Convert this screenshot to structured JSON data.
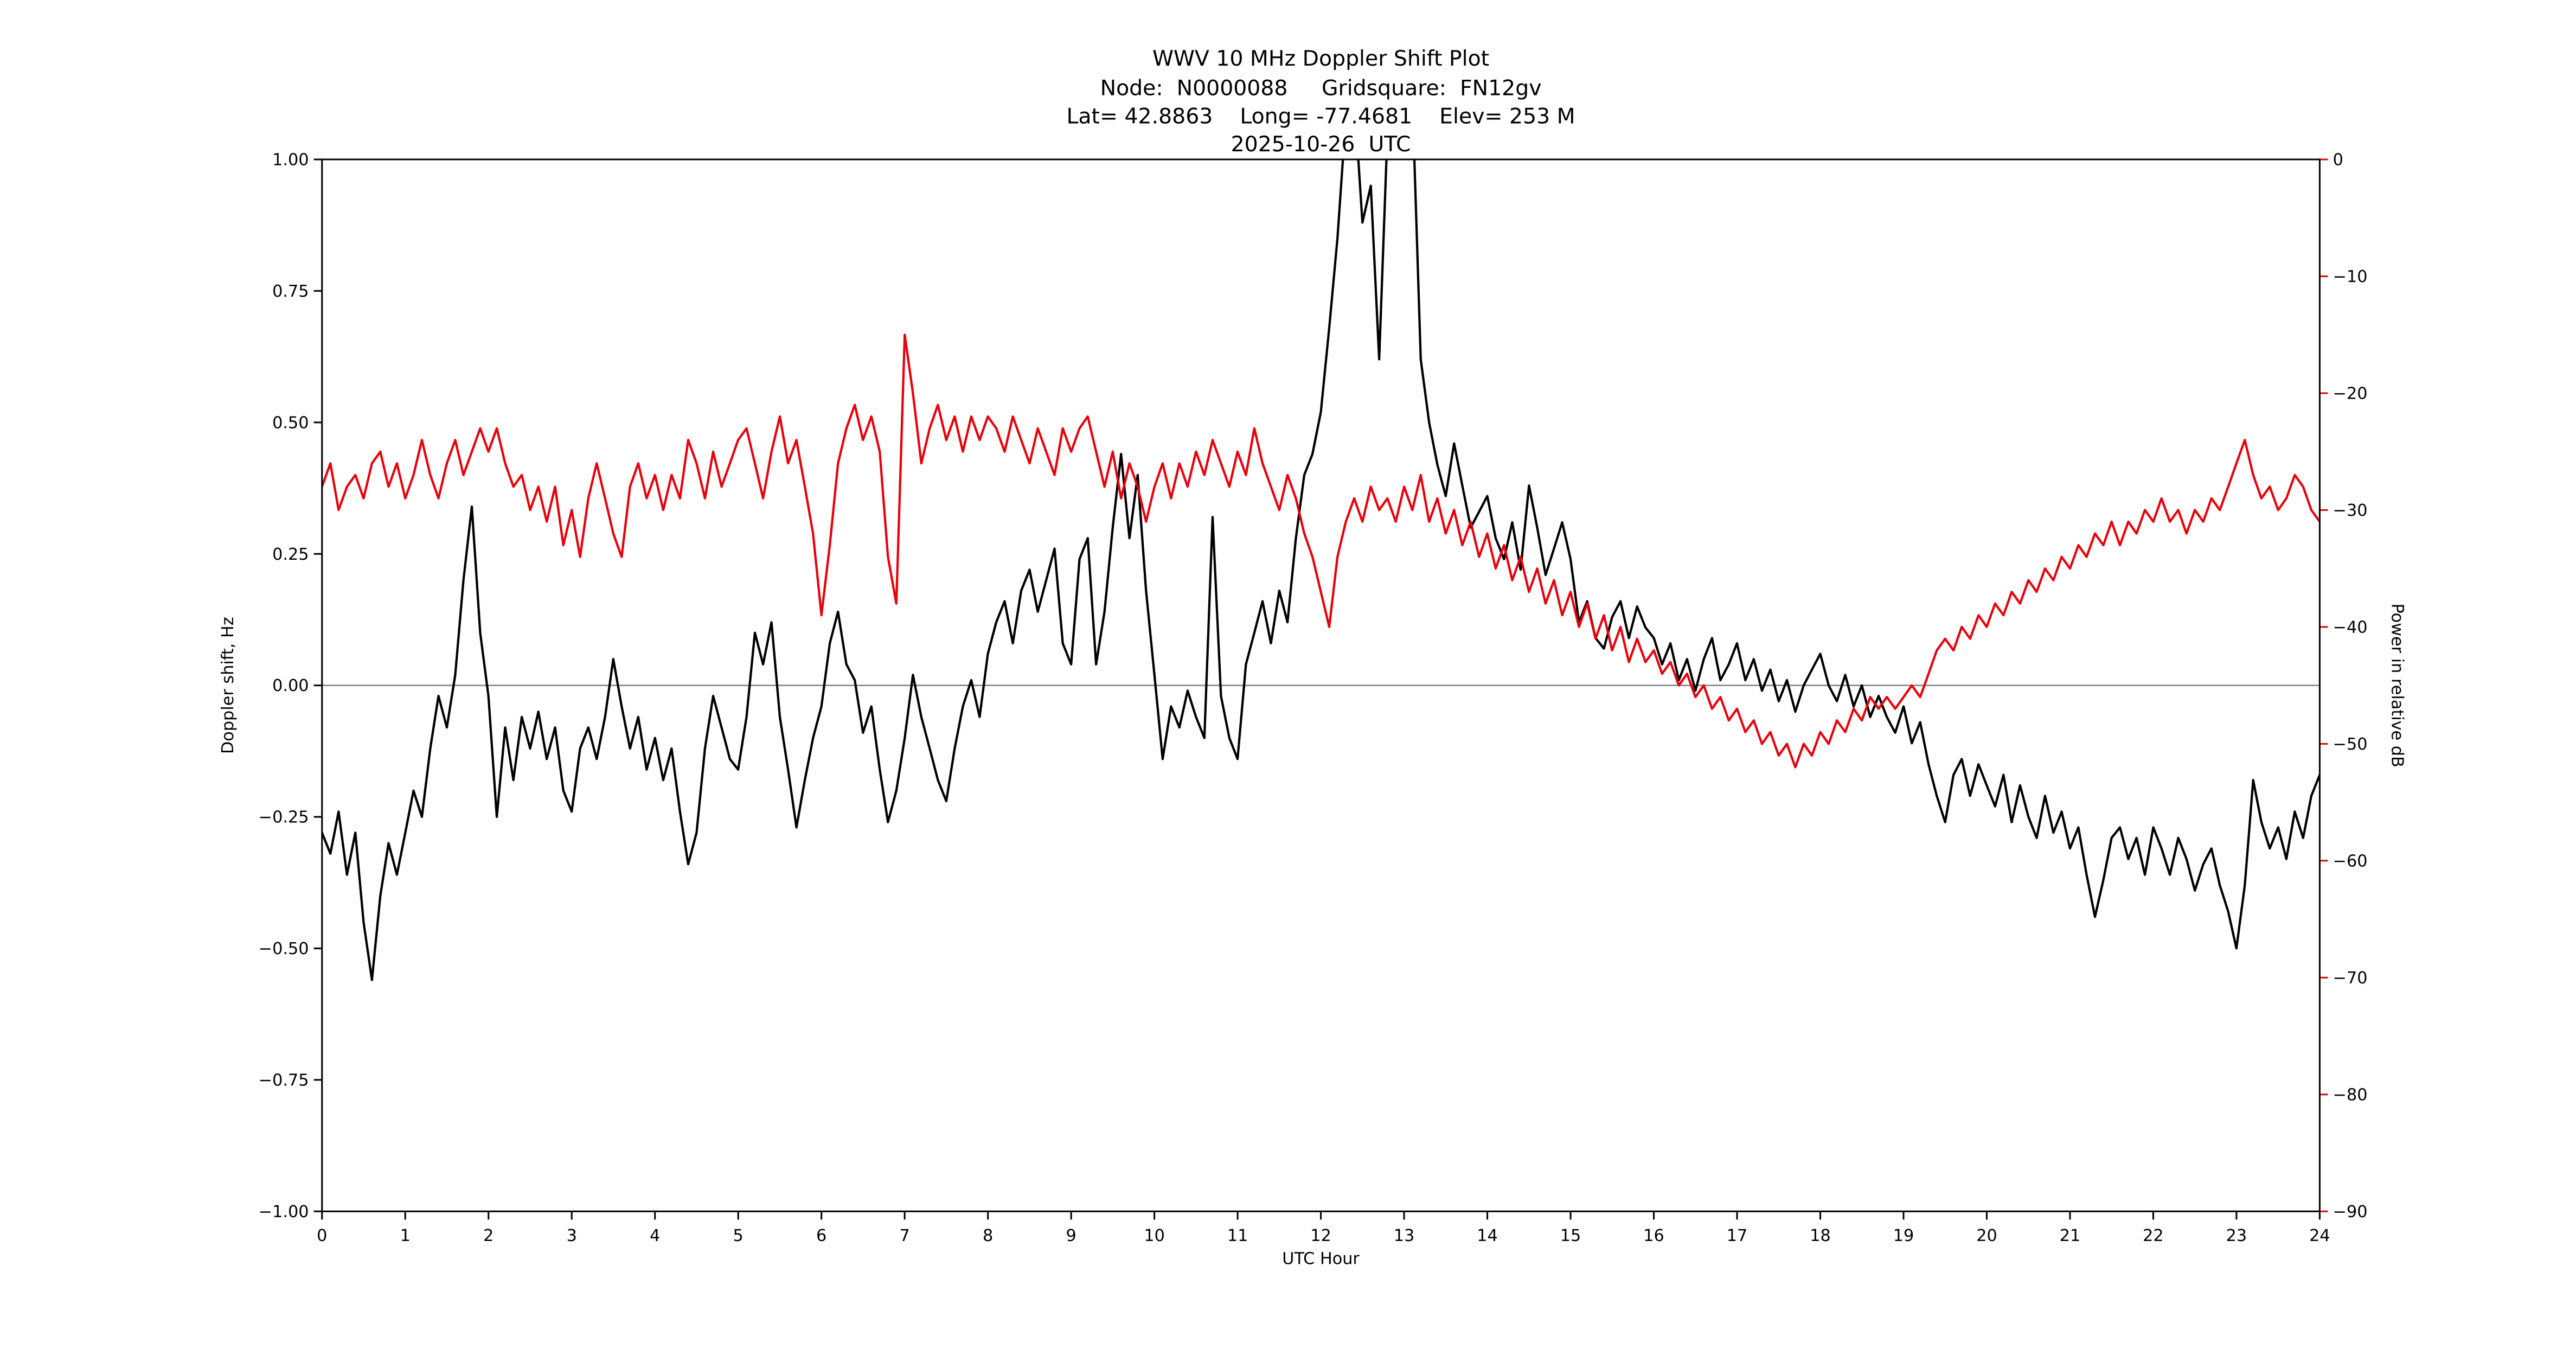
{
  "title": {
    "line1": "WWV 10 MHz Doppler Shift Plot",
    "line2": "Node:  N0000088     Gridsquare:  FN12gv",
    "line3": "Lat= 42.8863    Long= -77.4681    Elev= 253 M",
    "line4": "2025-10-26  UTC"
  },
  "chart_data": {
    "type": "line",
    "title": "WWV 10 MHz Doppler Shift Plot",
    "xlabel": "UTC Hour",
    "ylabel_left": "Doppler shift, Hz",
    "ylabel_right": "Power in relative dB",
    "xlim": [
      0,
      24
    ],
    "ylim_left": [
      -1.0,
      1.0
    ],
    "ylim_right": [
      -90,
      0
    ],
    "x_ticks": [
      0,
      1,
      2,
      3,
      4,
      5,
      6,
      7,
      8,
      9,
      10,
      11,
      12,
      13,
      14,
      15,
      16,
      17,
      18,
      19,
      20,
      21,
      22,
      23,
      24
    ],
    "y_ticks_left": [
      1.0,
      0.75,
      0.5,
      0.25,
      0.0,
      -0.25,
      -0.5,
      -0.75,
      -1.0
    ],
    "y_ticks_right": [
      0,
      -10,
      -20,
      -30,
      -40,
      -50,
      -60,
      -70,
      -80,
      -90
    ],
    "grid": false,
    "zero_line_left": 0.0,
    "zero_line_color": "#808080",
    "axis_color": "#000000",
    "right_axis_color": "#e8000b",
    "legend": "none",
    "series": [
      {
        "name": "doppler_shift_hz",
        "axis": "left",
        "color": "#000000",
        "x_start": 0,
        "x_step": 0.1,
        "y": [
          -0.28,
          -0.32,
          -0.24,
          -0.36,
          -0.28,
          -0.45,
          -0.56,
          -0.4,
          -0.3,
          -0.36,
          -0.28,
          -0.2,
          -0.25,
          -0.12,
          -0.02,
          -0.08,
          0.02,
          0.2,
          0.34,
          0.1,
          -0.02,
          -0.25,
          -0.08,
          -0.18,
          -0.06,
          -0.12,
          -0.05,
          -0.14,
          -0.08,
          -0.2,
          -0.24,
          -0.12,
          -0.08,
          -0.14,
          -0.06,
          0.05,
          -0.04,
          -0.12,
          -0.06,
          -0.16,
          -0.1,
          -0.18,
          -0.12,
          -0.24,
          -0.34,
          -0.28,
          -0.12,
          -0.02,
          -0.08,
          -0.14,
          -0.16,
          -0.06,
          0.1,
          0.04,
          0.12,
          -0.06,
          -0.16,
          -0.27,
          -0.18,
          -0.1,
          -0.04,
          0.08,
          0.14,
          0.04,
          0.01,
          -0.09,
          -0.04,
          -0.16,
          -0.26,
          -0.2,
          -0.1,
          0.02,
          -0.06,
          -0.12,
          -0.18,
          -0.22,
          -0.12,
          -0.04,
          0.01,
          -0.06,
          0.06,
          0.12,
          0.16,
          0.08,
          0.18,
          0.22,
          0.14,
          0.2,
          0.26,
          0.08,
          0.04,
          0.24,
          0.28,
          0.04,
          0.14,
          0.3,
          0.44,
          0.28,
          0.4,
          0.18,
          0.02,
          -0.14,
          -0.04,
          -0.08,
          -0.01,
          -0.06,
          -0.1,
          0.32,
          -0.02,
          -0.1,
          -0.14,
          0.04,
          0.1,
          0.16,
          0.08,
          0.18,
          0.12,
          0.28,
          0.4,
          0.44,
          0.52,
          0.68,
          0.85,
          1.08,
          1.12,
          0.88,
          0.95,
          0.62,
          1.05,
          1.15,
          1.02,
          1.12,
          0.62,
          0.5,
          0.42,
          0.36,
          0.46,
          0.38,
          0.3,
          0.33,
          0.36,
          0.28,
          0.24,
          0.31,
          0.22,
          0.38,
          0.3,
          0.21,
          0.26,
          0.31,
          0.24,
          0.12,
          0.16,
          0.09,
          0.07,
          0.13,
          0.16,
          0.09,
          0.15,
          0.11,
          0.09,
          0.04,
          0.08,
          0.01,
          0.05,
          -0.01,
          0.05,
          0.09,
          0.01,
          0.04,
          0.08,
          0.01,
          0.05,
          -0.01,
          0.03,
          -0.03,
          0.01,
          -0.05,
          0.0,
          0.03,
          0.06,
          0.0,
          -0.03,
          0.02,
          -0.04,
          0.0,
          -0.06,
          -0.02,
          -0.06,
          -0.09,
          -0.04,
          -0.11,
          -0.07,
          -0.15,
          -0.21,
          -0.26,
          -0.17,
          -0.14,
          -0.21,
          -0.15,
          -0.19,
          -0.23,
          -0.17,
          -0.26,
          -0.19,
          -0.25,
          -0.29,
          -0.21,
          -0.28,
          -0.24,
          -0.31,
          -0.27,
          -0.36,
          -0.44,
          -0.37,
          -0.29,
          -0.27,
          -0.33,
          -0.29,
          -0.36,
          -0.27,
          -0.31,
          -0.36,
          -0.29,
          -0.33,
          -0.39,
          -0.34,
          -0.31,
          -0.38,
          -0.43,
          -0.5,
          -0.38,
          -0.18,
          -0.26,
          -0.31,
          -0.27,
          -0.33,
          -0.24,
          -0.29,
          -0.21,
          -0.17
        ]
      },
      {
        "name": "power_relative_db",
        "axis": "right",
        "color": "#e8000b",
        "x_start": 0,
        "x_step": 0.1,
        "y": [
          -28,
          -26,
          -30,
          -28,
          -27,
          -29,
          -26,
          -25,
          -28,
          -26,
          -29,
          -27,
          -24,
          -27,
          -29,
          -26,
          -24,
          -27,
          -25,
          -23,
          -25,
          -23,
          -26,
          -28,
          -27,
          -30,
          -28,
          -31,
          -28,
          -33,
          -30,
          -34,
          -29,
          -26,
          -29,
          -32,
          -34,
          -28,
          -26,
          -29,
          -27,
          -30,
          -27,
          -29,
          -24,
          -26,
          -29,
          -25,
          -28,
          -26,
          -24,
          -23,
          -26,
          -29,
          -25,
          -22,
          -26,
          -24,
          -28,
          -32,
          -39,
          -33,
          -26,
          -23,
          -21,
          -24,
          -22,
          -25,
          -34,
          -38,
          -15,
          -20,
          -26,
          -23,
          -21,
          -24,
          -22,
          -25,
          -22,
          -24,
          -22,
          -23,
          -25,
          -22,
          -24,
          -26,
          -23,
          -25,
          -27,
          -23,
          -25,
          -23,
          -22,
          -25,
          -28,
          -25,
          -29,
          -26,
          -28,
          -31,
          -28,
          -26,
          -29,
          -26,
          -28,
          -25,
          -27,
          -24,
          -26,
          -28,
          -25,
          -27,
          -23,
          -26,
          -28,
          -30,
          -27,
          -29,
          -32,
          -34,
          -37,
          -40,
          -34,
          -31,
          -29,
          -31,
          -28,
          -30,
          -29,
          -31,
          -28,
          -30,
          -27,
          -31,
          -29,
          -32,
          -30,
          -33,
          -31,
          -34,
          -32,
          -35,
          -33,
          -36,
          -34,
          -37,
          -35,
          -38,
          -36,
          -39,
          -37,
          -40,
          -38,
          -41,
          -39,
          -42,
          -40,
          -43,
          -41,
          -43,
          -42,
          -44,
          -43,
          -45,
          -44,
          -46,
          -45,
          -47,
          -46,
          -48,
          -47,
          -49,
          -48,
          -50,
          -49,
          -51,
          -50,
          -52,
          -50,
          -51,
          -49,
          -50,
          -48,
          -49,
          -47,
          -48,
          -46,
          -47,
          -46,
          -47,
          -46,
          -45,
          -46,
          -44,
          -42,
          -41,
          -42,
          -40,
          -41,
          -39,
          -40,
          -38,
          -39,
          -37,
          -38,
          -36,
          -37,
          -35,
          -36,
          -34,
          -35,
          -33,
          -34,
          -32,
          -33,
          -31,
          -33,
          -31,
          -32,
          -30,
          -31,
          -29,
          -31,
          -30,
          -32,
          -30,
          -31,
          -29,
          -30,
          -28,
          -26,
          -24,
          -27,
          -29,
          -28,
          -30,
          -29,
          -27,
          -28,
          -30,
          -31
        ]
      }
    ]
  }
}
